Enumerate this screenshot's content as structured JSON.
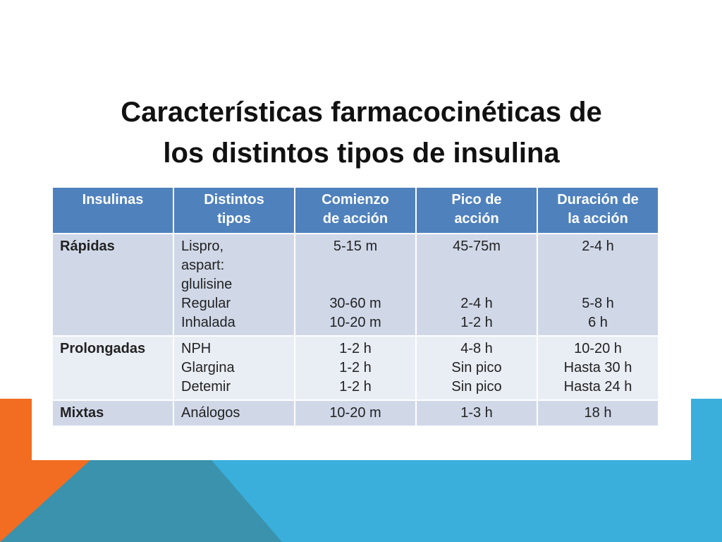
{
  "header": {
    "title_lines": [
      "Características farmacocinéticas de",
      "los distintos tipos de insulina"
    ]
  },
  "table": {
    "columns": [
      [
        "Insulinas"
      ],
      [
        "Distintos",
        "tipos"
      ],
      [
        "Comienzo",
        "de acción"
      ],
      [
        "Pico de",
        "acción"
      ],
      [
        "Duración de",
        "la acción"
      ]
    ],
    "rows": [
      {
        "cells": [
          [
            "Rápidas"
          ],
          [
            "Lispro,",
            "aspart:",
            "glulisine",
            "Regular",
            "Inhalada"
          ],
          [
            "5-15 m",
            null,
            null,
            "30-60 m",
            "10-20 m"
          ],
          [
            "45-75m",
            null,
            null,
            "2-4 h",
            "1-2 h"
          ],
          [
            "2-4 h",
            null,
            null,
            "5-8 h",
            "6 h"
          ]
        ]
      },
      {
        "cells": [
          [
            "Prolongadas"
          ],
          [
            "NPH",
            "Glargina",
            "Detemir"
          ],
          [
            "1-2 h",
            "1-2 h",
            "1-2 h"
          ],
          [
            "4-8 h",
            "Sin pico",
            "Sin pico"
          ],
          [
            "10-20 h",
            "Hasta 30 h",
            "Hasta 24 h"
          ]
        ]
      },
      {
        "cells": [
          [
            "Mixtas"
          ],
          [
            "Análogos"
          ],
          [
            "10-20 m"
          ],
          [
            "1-3 h"
          ],
          [
            "18 h"
          ]
        ]
      }
    ]
  }
}
